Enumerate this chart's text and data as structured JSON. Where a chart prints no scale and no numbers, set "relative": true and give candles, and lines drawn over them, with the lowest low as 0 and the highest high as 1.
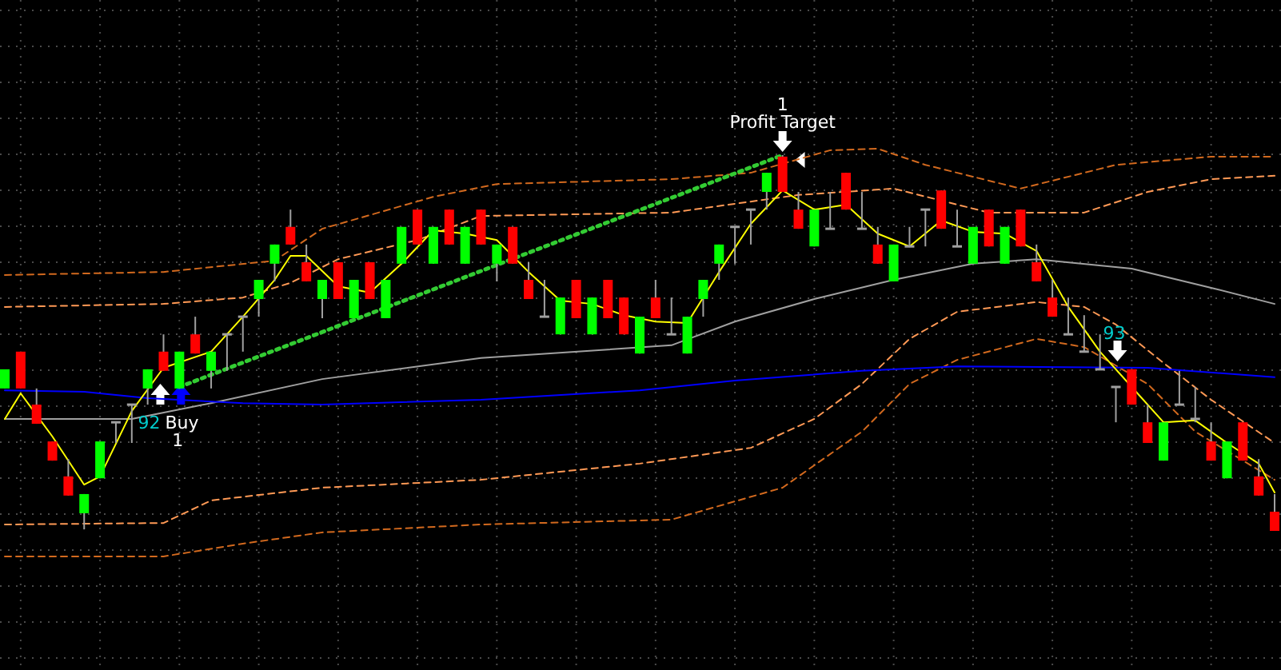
{
  "chart_data": {
    "type": "candlestick",
    "relative": true,
    "grid": true,
    "categories": [
      null,
      null,
      null,
      null,
      null,
      null,
      null,
      null,
      null,
      null,
      null,
      null,
      null,
      null,
      null,
      null,
      null,
      null,
      null,
      null,
      null,
      null,
      null,
      null,
      null,
      null,
      null,
      null,
      null,
      null,
      null,
      null,
      null,
      null,
      null,
      null,
      null,
      null,
      null,
      null,
      null,
      null,
      null,
      null,
      null,
      null,
      null,
      null,
      null,
      null,
      null,
      null,
      null,
      null,
      null,
      null,
      null,
      null,
      null,
      null,
      null,
      null,
      null,
      null,
      null,
      null,
      null,
      null,
      null,
      null,
      null,
      null,
      null,
      null,
      null,
      null,
      null,
      null,
      null,
      null,
      null
    ],
    "ohlc": [
      [
        0.379,
        0.43,
        0.379,
        0.43
      ],
      [
        0.477,
        0.477,
        0.379,
        0.379
      ],
      [
        0.336,
        0.379,
        0.285,
        0.285
      ],
      [
        0.238,
        0.238,
        0.187,
        0.187
      ],
      [
        0.145,
        0.191,
        0.094,
        0.094
      ],
      [
        0.047,
        0.098,
        0.004,
        0.098
      ],
      [
        0.14,
        0.238,
        0.14,
        0.238
      ],
      [
        0.289,
        0.289,
        0.234,
        0.289
      ],
      [
        0.336,
        0.336,
        0.234,
        0.336
      ],
      [
        0.379,
        0.43,
        0.336,
        0.43
      ],
      [
        0.477,
        0.523,
        0.426,
        0.426
      ],
      [
        0.379,
        0.477,
        0.379,
        0.477
      ],
      [
        0.523,
        0.57,
        0.472,
        0.472
      ],
      [
        0.426,
        0.477,
        0.379,
        0.477
      ],
      [
        0.523,
        0.523,
        0.426,
        0.523
      ],
      [
        0.57,
        0.57,
        0.477,
        0.57
      ],
      [
        0.617,
        0.668,
        0.57,
        0.668
      ],
      [
        0.711,
        0.762,
        0.664,
        0.762
      ],
      [
        0.809,
        0.855,
        0.762,
        0.762
      ],
      [
        0.715,
        0.762,
        0.664,
        0.664
      ],
      [
        0.617,
        0.668,
        0.566,
        0.668
      ],
      [
        0.715,
        0.715,
        0.617,
        0.617
      ],
      [
        0.566,
        0.668,
        0.566,
        0.668
      ],
      [
        0.715,
        0.715,
        0.617,
        0.617
      ],
      [
        0.566,
        0.668,
        0.566,
        0.668
      ],
      [
        0.711,
        0.809,
        0.711,
        0.809
      ],
      [
        0.855,
        0.855,
        0.762,
        0.762
      ],
      [
        0.711,
        0.809,
        0.711,
        0.809
      ],
      [
        0.855,
        0.855,
        0.762,
        0.762
      ],
      [
        0.711,
        0.809,
        0.711,
        0.809
      ],
      [
        0.855,
        0.855,
        0.762,
        0.762
      ],
      [
        0.711,
        0.762,
        0.664,
        0.762
      ],
      [
        0.809,
        0.809,
        0.711,
        0.711
      ],
      [
        0.668,
        0.715,
        0.617,
        0.617
      ],
      [
        0.57,
        0.668,
        0.57,
        0.57
      ],
      [
        0.523,
        0.621,
        0.523,
        0.621
      ],
      [
        0.668,
        0.668,
        0.566,
        0.566
      ],
      [
        0.523,
        0.621,
        0.523,
        0.621
      ],
      [
        0.668,
        0.668,
        0.566,
        0.566
      ],
      [
        0.621,
        0.621,
        0.523,
        0.523
      ],
      [
        0.472,
        0.57,
        0.472,
        0.57
      ],
      [
        0.621,
        0.668,
        0.566,
        0.566
      ],
      [
        0.523,
        0.621,
        0.523,
        0.523
      ],
      [
        0.472,
        0.57,
        0.472,
        0.57
      ],
      [
        0.617,
        0.668,
        0.57,
        0.668
      ],
      [
        0.711,
        0.762,
        0.668,
        0.762
      ],
      [
        0.809,
        0.809,
        0.711,
        0.809
      ],
      [
        0.855,
        0.855,
        0.762,
        0.855
      ],
      [
        0.902,
        0.953,
        0.855,
        0.953
      ],
      [
        0.996,
        1,
        0.902,
        0.902
      ],
      [
        0.855,
        0.902,
        0.804,
        0.804
      ],
      [
        0.757,
        0.855,
        0.757,
        0.855
      ],
      [
        0.804,
        0.902,
        0.804,
        0.804
      ],
      [
        0.953,
        0.953,
        0.855,
        0.855
      ],
      [
        0.804,
        0.902,
        0.804,
        0.804
      ],
      [
        0.762,
        0.809,
        0.711,
        0.711
      ],
      [
        0.664,
        0.762,
        0.664,
        0.762
      ],
      [
        0.757,
        0.809,
        0.757,
        0.757
      ],
      [
        0.855,
        0.855,
        0.757,
        0.855
      ],
      [
        0.906,
        0.906,
        0.804,
        0.804
      ],
      [
        0.757,
        0.855,
        0.757,
        0.757
      ],
      [
        0.711,
        0.809,
        0.711,
        0.809
      ],
      [
        0.855,
        0.855,
        0.757,
        0.757
      ],
      [
        0.711,
        0.809,
        0.711,
        0.809
      ],
      [
        0.855,
        0.855,
        0.757,
        0.757
      ],
      [
        0.715,
        0.762,
        0.664,
        0.664
      ],
      [
        0.621,
        0.668,
        0.57,
        0.57
      ],
      [
        0.523,
        0.621,
        0.523,
        0.523
      ],
      [
        0.477,
        0.574,
        0.477,
        0.477
      ],
      [
        0.43,
        0.523,
        0.43,
        0.43
      ],
      [
        0.383,
        0.383,
        0.289,
        0.383
      ],
      [
        0.43,
        0.43,
        0.336,
        0.336
      ],
      [
        0.289,
        0.336,
        0.234,
        0.234
      ],
      [
        0.187,
        0.289,
        0.187,
        0.289
      ],
      [
        0.336,
        0.426,
        0.336,
        0.336
      ],
      [
        0.298,
        0.383,
        0.289,
        0.298
      ],
      [
        0.238,
        0.289,
        0.187,
        0.187
      ],
      [
        0.14,
        0.238,
        0.14,
        0.238
      ],
      [
        0.289,
        0.289,
        0.187,
        0.187
      ],
      [
        0.145,
        0.191,
        0.094,
        0.094
      ],
      [
        0.051,
        0.098,
        0,
        0
      ]
    ],
    "colors": [
      "#00ff00",
      "#ff0000",
      "#ff0000",
      "#ff0000",
      "#ff0000",
      "#00ff00",
      "#00ff00",
      "#a0a0a0",
      "#a0a0a0",
      "#00ff00",
      "#ff0000",
      "#00ff00",
      "#ff0000",
      "#00ff00",
      "#a0a0a0",
      "#a0a0a0",
      "#00ff00",
      "#00ff00",
      "#ff0000",
      "#ff0000",
      "#00ff00",
      "#ff0000",
      "#00ff00",
      "#ff0000",
      "#00ff00",
      "#00ff00",
      "#ff0000",
      "#00ff00",
      "#ff0000",
      "#00ff00",
      "#ff0000",
      "#00ff00",
      "#ff0000",
      "#ff0000",
      "#a0a0a0",
      "#00ff00",
      "#ff0000",
      "#00ff00",
      "#ff0000",
      "#ff0000",
      "#00ff00",
      "#ff0000",
      "#a0a0a0",
      "#00ff00",
      "#00ff00",
      "#00ff00",
      "#a0a0a0",
      "#a0a0a0",
      "#00ff00",
      "#ff0000",
      "#ff0000",
      "#00ff00",
      "#a0a0a0",
      "#ff0000",
      "#a0a0a0",
      "#ff0000",
      "#00ff00",
      "#a0a0a0",
      "#a0a0a0",
      "#ff0000",
      "#a0a0a0",
      "#00ff00",
      "#ff0000",
      "#00ff00",
      "#ff0000",
      "#ff0000",
      "#ff0000",
      "#a0a0a0",
      "#a0a0a0",
      "#a0a0a0",
      "#a0a0a0",
      "#ff0000",
      "#ff0000",
      "#00ff00",
      "#a0a0a0",
      "#a0a0a0",
      "#ff0000",
      "#00ff00",
      "#ff0000",
      "#ff0000",
      "#ff0000"
    ],
    "series": [
      {
        "type": "line",
        "color": "#d2691e",
        "line_style": "dashed",
        "values": [
          0.681,
          null,
          null,
          null,
          null,
          null,
          null,
          null,
          null,
          null,
          0.689,
          null,
          null,
          null,
          null,
          null,
          null,
          0.719,
          null,
          null,
          0.804,
          null,
          null,
          null,
          null,
          null,
          null,
          0.889,
          null,
          null,
          null,
          0.923,
          null,
          null,
          null,
          null,
          null,
          null,
          null,
          null,
          null,
          null,
          0.936,
          null,
          null,
          null,
          null,
          0.953,
          null,
          null,
          null,
          null,
          1.013,
          null,
          null,
          1.017,
          null,
          null,
          0.974,
          null,
          null,
          null,
          null,
          null,
          0.911,
          null,
          null,
          null,
          null,
          null,
          0.974,
          null,
          null,
          null,
          null,
          null,
          0.996,
          null,
          null,
          null,
          0.996
        ]
      },
      {
        "type": "line",
        "color": "#ff9955",
        "line_style": "dashed",
        "values": [
          0.596,
          null,
          null,
          null,
          null,
          null,
          null,
          null,
          null,
          null,
          0.604,
          null,
          null,
          null,
          null,
          0.621,
          null,
          null,
          0.66,
          null,
          null,
          0.723,
          null,
          null,
          null,
          null,
          0.774,
          null,
          null,
          null,
          0.838,
          null,
          null,
          null,
          null,
          null,
          null,
          null,
          null,
          null,
          null,
          null,
          0.847,
          null,
          null,
          null,
          null,
          null,
          null,
          null,
          0.894,
          null,
          null,
          null,
          null,
          null,
          0.911,
          null,
          null,
          null,
          null,
          null,
          0.847,
          null,
          null,
          null,
          null,
          null,
          0.847,
          null,
          null,
          null,
          0.902,
          null,
          null,
          null,
          0.936,
          null,
          null,
          null,
          0.945
        ]
      },
      {
        "type": "line",
        "color": "#ff9955",
        "line_style": "dashed",
        "values": [
          0.017,
          null,
          null,
          null,
          null,
          null,
          null,
          null,
          null,
          null,
          0.021,
          null,
          null,
          0.081,
          null,
          null,
          null,
          null,
          null,
          null,
          0.115,
          null,
          null,
          null,
          null,
          null,
          null,
          null,
          null,
          null,
          0.136,
          null,
          null,
          null,
          null,
          null,
          null,
          null,
          null,
          null,
          0.179,
          null,
          null,
          null,
          null,
          null,
          null,
          0.221,
          null,
          null,
          null,
          0.298,
          null,
          null,
          0.391,
          null,
          null,
          0.511,
          null,
          null,
          0.583,
          null,
          null,
          null,
          null,
          0.609,
          null,
          null,
          0.596,
          null,
          0.549,
          null,
          null,
          0.447,
          null,
          null,
          0.349,
          null,
          null,
          null,
          0.234
        ]
      },
      {
        "type": "line",
        "color": "#d2691e",
        "line_style": "dashed",
        "values": [
          -0.068,
          null,
          null,
          null,
          null,
          null,
          null,
          null,
          null,
          null,
          -0.068,
          null,
          null,
          null,
          null,
          -0.034,
          null,
          null,
          null,
          null,
          -0.004,
          null,
          null,
          null,
          null,
          null,
          null,
          null,
          null,
          null,
          0.017,
          null,
          null,
          null,
          null,
          null,
          null,
          null,
          null,
          null,
          null,
          null,
          0.03,
          null,
          null,
          null,
          null,
          null,
          null,
          0.115,
          null,
          null,
          null,
          null,
          0.264,
          null,
          null,
          0.391,
          null,
          null,
          0.455,
          null,
          null,
          null,
          null,
          0.511,
          null,
          null,
          0.489,
          null,
          null,
          null,
          0.391,
          null,
          null,
          0.264,
          null,
          null,
          null,
          null,
          0.136
        ]
      },
      {
        "type": "line",
        "color": "#a0a0a0",
        "line_style": "solid",
        "values": [
          0.298,
          null,
          null,
          null,
          null,
          null,
          null,
          null,
          0.298,
          null,
          null,
          null,
          null,
          0.34,
          null,
          null,
          null,
          null,
          null,
          null,
          0.404,
          null,
          null,
          null,
          null,
          null,
          null,
          null,
          null,
          null,
          0.46,
          null,
          null,
          null,
          null,
          null,
          null,
          null,
          null,
          null,
          null,
          null,
          0.494,
          null,
          null,
          null,
          0.557,
          null,
          null,
          null,
          null,
          0.617,
          null,
          null,
          null,
          null,
          0.668,
          null,
          null,
          null,
          null,
          0.711,
          null,
          null,
          null,
          0.723,
          null,
          null,
          null,
          null,
          null,
          0.698,
          null,
          null,
          null,
          null,
          0.647,
          null,
          null,
          null,
          0.604
        ]
      },
      {
        "type": "line",
        "color": "#0000ff",
        "line_style": "solid",
        "values": [
          0.374,
          null,
          null,
          null,
          null,
          0.37,
          null,
          null,
          null,
          0.353,
          null,
          null,
          null,
          null,
          null,
          0.34,
          null,
          null,
          null,
          null,
          0.336,
          null,
          null,
          null,
          null,
          null,
          null,
          null,
          null,
          null,
          0.349,
          null,
          null,
          null,
          null,
          null,
          null,
          null,
          null,
          null,
          0.374,
          null,
          null,
          null,
          null,
          null,
          0.4,
          null,
          null,
          null,
          null,
          null,
          null,
          null,
          0.426,
          null,
          null,
          null,
          null,
          null,
          0.438,
          null,
          null,
          null,
          null,
          null,
          null,
          null,
          null,
          null,
          null,
          null,
          0.434,
          null,
          null,
          null,
          null,
          null,
          null,
          null,
          0.409
        ]
      },
      {
        "type": "line",
        "color": "#ffff00",
        "line_style": "solid",
        "values": [
          0.298,
          0.366,
          null,
          0.251,
          null,
          0.123,
          0.145,
          null,
          0.319,
          null,
          0.434,
          null,
          null,
          0.477,
          null,
          0.57,
          null,
          0.668,
          0.732,
          0.732,
          null,
          0.651,
          null,
          0.634,
          null,
          0.711,
          null,
          0.8,
          null,
          0.791,
          null,
          0.774,
          null,
          0.689,
          null,
          0.613,
          null,
          0.604,
          null,
          0.574,
          null,
          0.557,
          null,
          0.553,
          null,
          0.689,
          null,
          0.817,
          null,
          0.906,
          null,
          0.855,
          null,
          0.868,
          null,
          0.791,
          null,
          0.757,
          null,
          0.826,
          null,
          0.796,
          null,
          0.791,
          null,
          0.745,
          null,
          0.596,
          null,
          0.477,
          null,
          0.383,
          null,
          0.289,
          null,
          0.294,
          null,
          0.234,
          null,
          0.179,
          0.102
        ]
      },
      {
        "type": "line",
        "color": "#33cc33",
        "line_style": "dotted",
        "values": [
          null,
          null,
          null,
          null,
          null,
          null,
          null,
          null,
          null,
          null,
          null,
          0.383,
          null,
          null,
          null,
          null,
          null,
          null,
          null,
          null,
          null,
          null,
          null,
          null,
          null,
          null,
          null,
          null,
          null,
          null,
          null,
          null,
          null,
          null,
          null,
          null,
          null,
          null,
          null,
          null,
          null,
          null,
          null,
          null,
          null,
          null,
          null,
          null,
          null,
          1.0,
          null,
          null,
          null,
          null,
          null,
          null,
          null,
          null,
          null,
          null,
          null,
          null,
          null,
          null,
          null,
          null,
          null,
          null,
          null,
          null,
          null,
          null,
          null,
          null,
          null,
          null,
          null,
          null,
          null,
          null,
          null
        ]
      }
    ],
    "annotations": [
      "1",
      "Profit Target",
      "92",
      "Buy",
      "1",
      "93"
    ]
  }
}
